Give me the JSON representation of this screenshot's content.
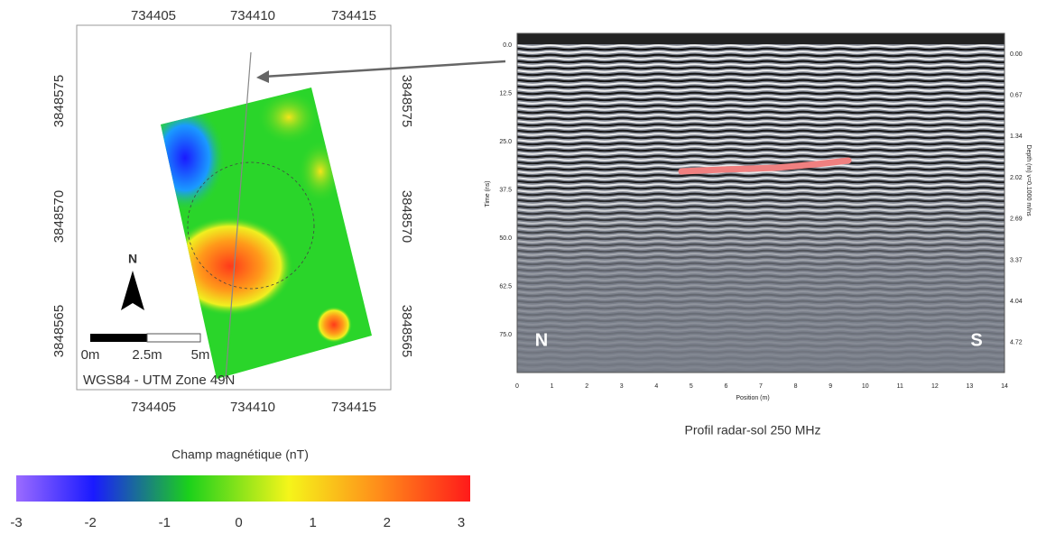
{
  "map": {
    "x_ticks": [
      734405,
      734410,
      734415
    ],
    "y_ticks": [
      3848575,
      3848570,
      3848565
    ],
    "north": "N",
    "scale_labels": [
      "0m",
      "2.5m",
      "5m"
    ],
    "projection": "WGS84 - UTM Zone 49N"
  },
  "colorbar": {
    "title": "Champ magnétique (nT)",
    "ticks": [
      -3,
      -2,
      -1,
      0,
      1,
      2,
      3
    ]
  },
  "radar": {
    "caption": "Profil radar-sol 250 MHz",
    "time_label": "Time (ns)",
    "time_ticks": [
      "0.0",
      "12.5",
      "25.0",
      "37.5",
      "50.0",
      "62.5",
      "75.0"
    ],
    "depth_label": "Depth (m) v=0.1000 m/ns",
    "depth_ticks": [
      "0.00",
      "0.67",
      "1.34",
      "2.02",
      "2.69",
      "3.37",
      "4.04",
      "4.72"
    ],
    "position_label": "Position (m)",
    "position_ticks": [
      0,
      1,
      2,
      3,
      4,
      5,
      6,
      7,
      8,
      9,
      10,
      11,
      12,
      13,
      14
    ],
    "start_label": "N",
    "end_label": "S"
  }
}
